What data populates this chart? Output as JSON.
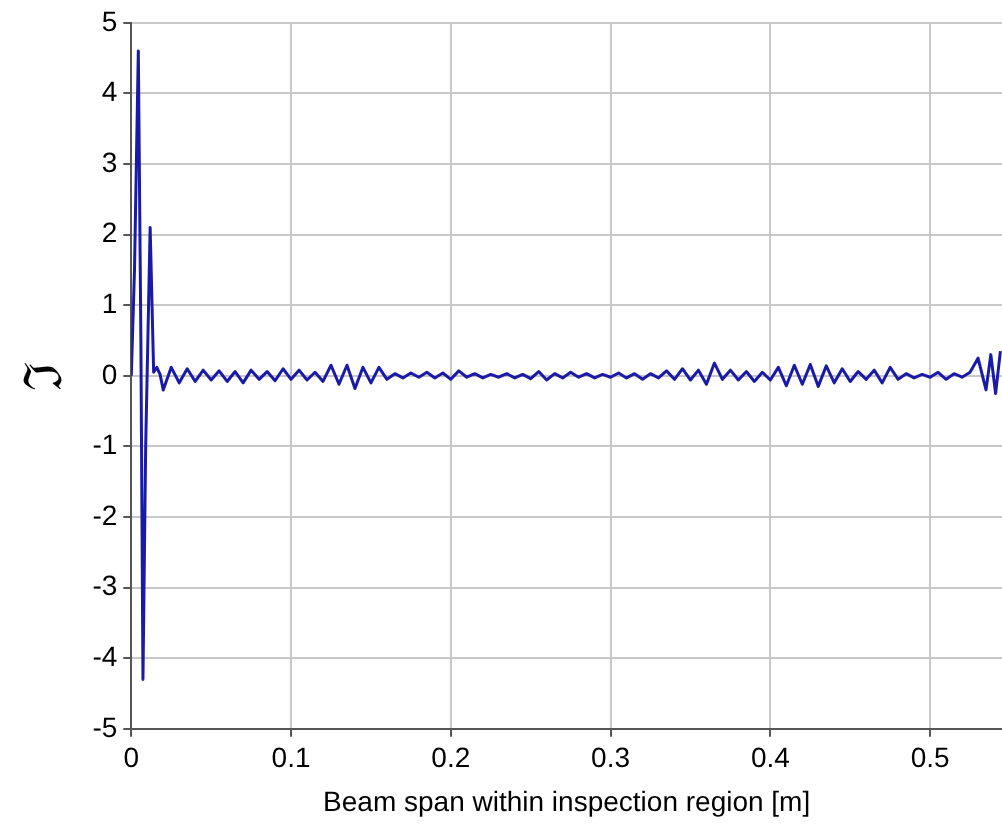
{
  "chart_data": {
    "type": "line",
    "xlabel": "Beam span within inspection region [m]",
    "ylabel": "ℑ",
    "xlim": [
      0,
      0.545
    ],
    "ylim": [
      -5,
      5
    ],
    "xticks": [
      0,
      0.1,
      0.2,
      0.3,
      0.4,
      0.5
    ],
    "yticks": [
      -5,
      -4,
      -3,
      -2,
      -1,
      0,
      1,
      2,
      3,
      4,
      5
    ],
    "grid": true,
    "legend": false,
    "marker": "none",
    "line_style": "solid",
    "series": [
      {
        "color": "#1a1aa8",
        "x": [
          0,
          0.002,
          0.0044,
          0.006,
          0.0073,
          0.009,
          0.0118,
          0.014,
          0.016,
          0.018,
          0.02,
          0.025,
          0.03,
          0.035,
          0.04,
          0.045,
          0.05,
          0.055,
          0.06,
          0.065,
          0.07,
          0.075,
          0.08,
          0.085,
          0.09,
          0.095,
          0.1,
          0.105,
          0.11,
          0.115,
          0.12,
          0.125,
          0.13,
          0.135,
          0.14,
          0.145,
          0.15,
          0.155,
          0.16,
          0.165,
          0.17,
          0.175,
          0.18,
          0.185,
          0.19,
          0.195,
          0.2,
          0.205,
          0.21,
          0.215,
          0.22,
          0.225,
          0.23,
          0.235,
          0.24,
          0.245,
          0.25,
          0.255,
          0.26,
          0.265,
          0.27,
          0.275,
          0.28,
          0.285,
          0.29,
          0.295,
          0.3,
          0.305,
          0.31,
          0.315,
          0.32,
          0.325,
          0.33,
          0.335,
          0.34,
          0.345,
          0.35,
          0.355,
          0.36,
          0.365,
          0.37,
          0.375,
          0.38,
          0.385,
          0.39,
          0.395,
          0.4,
          0.405,
          0.41,
          0.415,
          0.42,
          0.425,
          0.43,
          0.435,
          0.44,
          0.445,
          0.45,
          0.455,
          0.46,
          0.465,
          0.47,
          0.475,
          0.48,
          0.485,
          0.49,
          0.495,
          0.5,
          0.505,
          0.51,
          0.515,
          0.52,
          0.525,
          0.53,
          0.535,
          0.538,
          0.541,
          0.544
        ],
        "values": [
          0,
          1.5,
          4.6,
          0.5,
          -4.3,
          -1,
          2.1,
          0.05,
          0.12,
          0.02,
          -0.2,
          0.12,
          -0.1,
          0.1,
          -0.08,
          0.08,
          -0.06,
          0.07,
          -0.08,
          0.06,
          -0.1,
          0.08,
          -0.05,
          0.06,
          -0.07,
          0.1,
          -0.05,
          0.08,
          -0.06,
          0.05,
          -0.08,
          0.15,
          -0.12,
          0.15,
          -0.18,
          0.12,
          -0.1,
          0.12,
          -0.05,
          0.03,
          -0.03,
          0.04,
          -0.02,
          0.05,
          -0.03,
          0.04,
          -0.05,
          0.07,
          -0.02,
          0.03,
          -0.03,
          0.02,
          -0.02,
          0.03,
          -0.03,
          0.02,
          -0.04,
          0.06,
          -0.06,
          0.03,
          -0.03,
          0.05,
          -0.02,
          0.03,
          -0.03,
          0.02,
          -0.02,
          0.04,
          -0.03,
          0.03,
          -0.05,
          0.03,
          -0.03,
          0.07,
          -0.05,
          0.1,
          -0.06,
          0.08,
          -0.12,
          0.18,
          -0.05,
          0.08,
          -0.06,
          0.06,
          -0.08,
          0.05,
          -0.06,
          0.12,
          -0.14,
          0.15,
          -0.12,
          0.16,
          -0.15,
          0.14,
          -0.1,
          0.1,
          -0.08,
          0.06,
          -0.05,
          0.08,
          -0.1,
          0.12,
          -0.05,
          0.03,
          -0.03,
          0.02,
          -0.02,
          0.05,
          -0.05,
          0.03,
          -0.02,
          0.05,
          0.25,
          -0.2,
          0.3,
          -0.25,
          0.35
        ]
      }
    ]
  }
}
